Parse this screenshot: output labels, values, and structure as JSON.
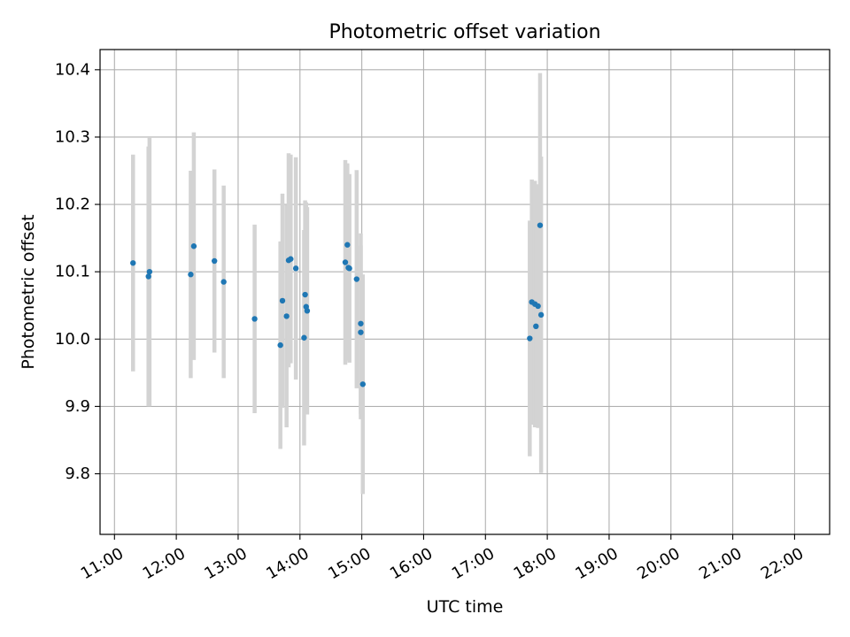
{
  "chart_data": {
    "type": "scatter",
    "title": "Photometric offset variation",
    "xlabel": "UTC time",
    "ylabel": "Photometric offset",
    "x_unit": "hours (UTC)",
    "xlim": [
      "10:46",
      "22:34"
    ],
    "ylim": [
      9.71,
      10.43
    ],
    "x_ticks": [
      "11:00",
      "12:00",
      "13:00",
      "14:00",
      "15:00",
      "16:00",
      "17:00",
      "18:00",
      "19:00",
      "20:00",
      "21:00",
      "22:00"
    ],
    "y_ticks": [
      "9.8",
      "9.9",
      "10.0",
      "10.1",
      "10.2",
      "10.3",
      "10.4"
    ],
    "grid": true,
    "marker_color": "#1f77b4",
    "errorbar_color": "#d3d3d3",
    "points": [
      {
        "x": "11:18",
        "y": 10.113,
        "err": 0.161
      },
      {
        "x": "11:33",
        "y": 10.093,
        "err": 0.193
      },
      {
        "x": "11:34",
        "y": 10.1,
        "err": 0.2
      },
      {
        "x": "12:14",
        "y": 10.096,
        "err": 0.154
      },
      {
        "x": "12:17",
        "y": 10.138,
        "err": 0.169
      },
      {
        "x": "12:37",
        "y": 10.116,
        "err": 0.136
      },
      {
        "x": "12:46",
        "y": 10.085,
        "err": 0.143
      },
      {
        "x": "13:16",
        "y": 10.03,
        "err": 0.14
      },
      {
        "x": "13:41",
        "y": 9.991,
        "err": 0.154
      },
      {
        "x": "13:43",
        "y": 10.057,
        "err": 0.159
      },
      {
        "x": "13:47",
        "y": 10.034,
        "err": 0.165
      },
      {
        "x": "13:49",
        "y": 10.117,
        "err": 0.159
      },
      {
        "x": "13:51",
        "y": 10.119,
        "err": 0.155
      },
      {
        "x": "13:56",
        "y": 10.105,
        "err": 0.165
      },
      {
        "x": "14:04",
        "y": 10.002,
        "err": 0.16
      },
      {
        "x": "14:05",
        "y": 10.066,
        "err": 0.14
      },
      {
        "x": "14:06",
        "y": 10.048,
        "err": 0.155
      },
      {
        "x": "14:07",
        "y": 10.042,
        "err": 0.154
      },
      {
        "x": "14:44",
        "y": 10.114,
        "err": 0.152
      },
      {
        "x": "14:46",
        "y": 10.14,
        "err": 0.121
      },
      {
        "x": "14:47",
        "y": 10.106,
        "err": 0.138
      },
      {
        "x": "14:48",
        "y": 10.105,
        "err": 0.14
      },
      {
        "x": "14:55",
        "y": 10.089,
        "err": 0.162
      },
      {
        "x": "14:59",
        "y": 10.023,
        "err": 0.134
      },
      {
        "x": "14:59",
        "y": 10.01,
        "err": 0.129
      },
      {
        "x": "15:01",
        "y": 9.933,
        "err": 0.163
      },
      {
        "x": "17:43",
        "y": 10.001,
        "err": 0.175
      },
      {
        "x": "17:45",
        "y": 10.055,
        "err": 0.182
      },
      {
        "x": "17:48",
        "y": 10.052,
        "err": 0.183
      },
      {
        "x": "17:49",
        "y": 10.019,
        "err": 0.15
      },
      {
        "x": "17:51",
        "y": 10.049,
        "err": 0.181
      },
      {
        "x": "17:53",
        "y": 10.169,
        "err": 0.226
      },
      {
        "x": "17:54",
        "y": 10.036,
        "err": 0.235
      }
    ]
  }
}
